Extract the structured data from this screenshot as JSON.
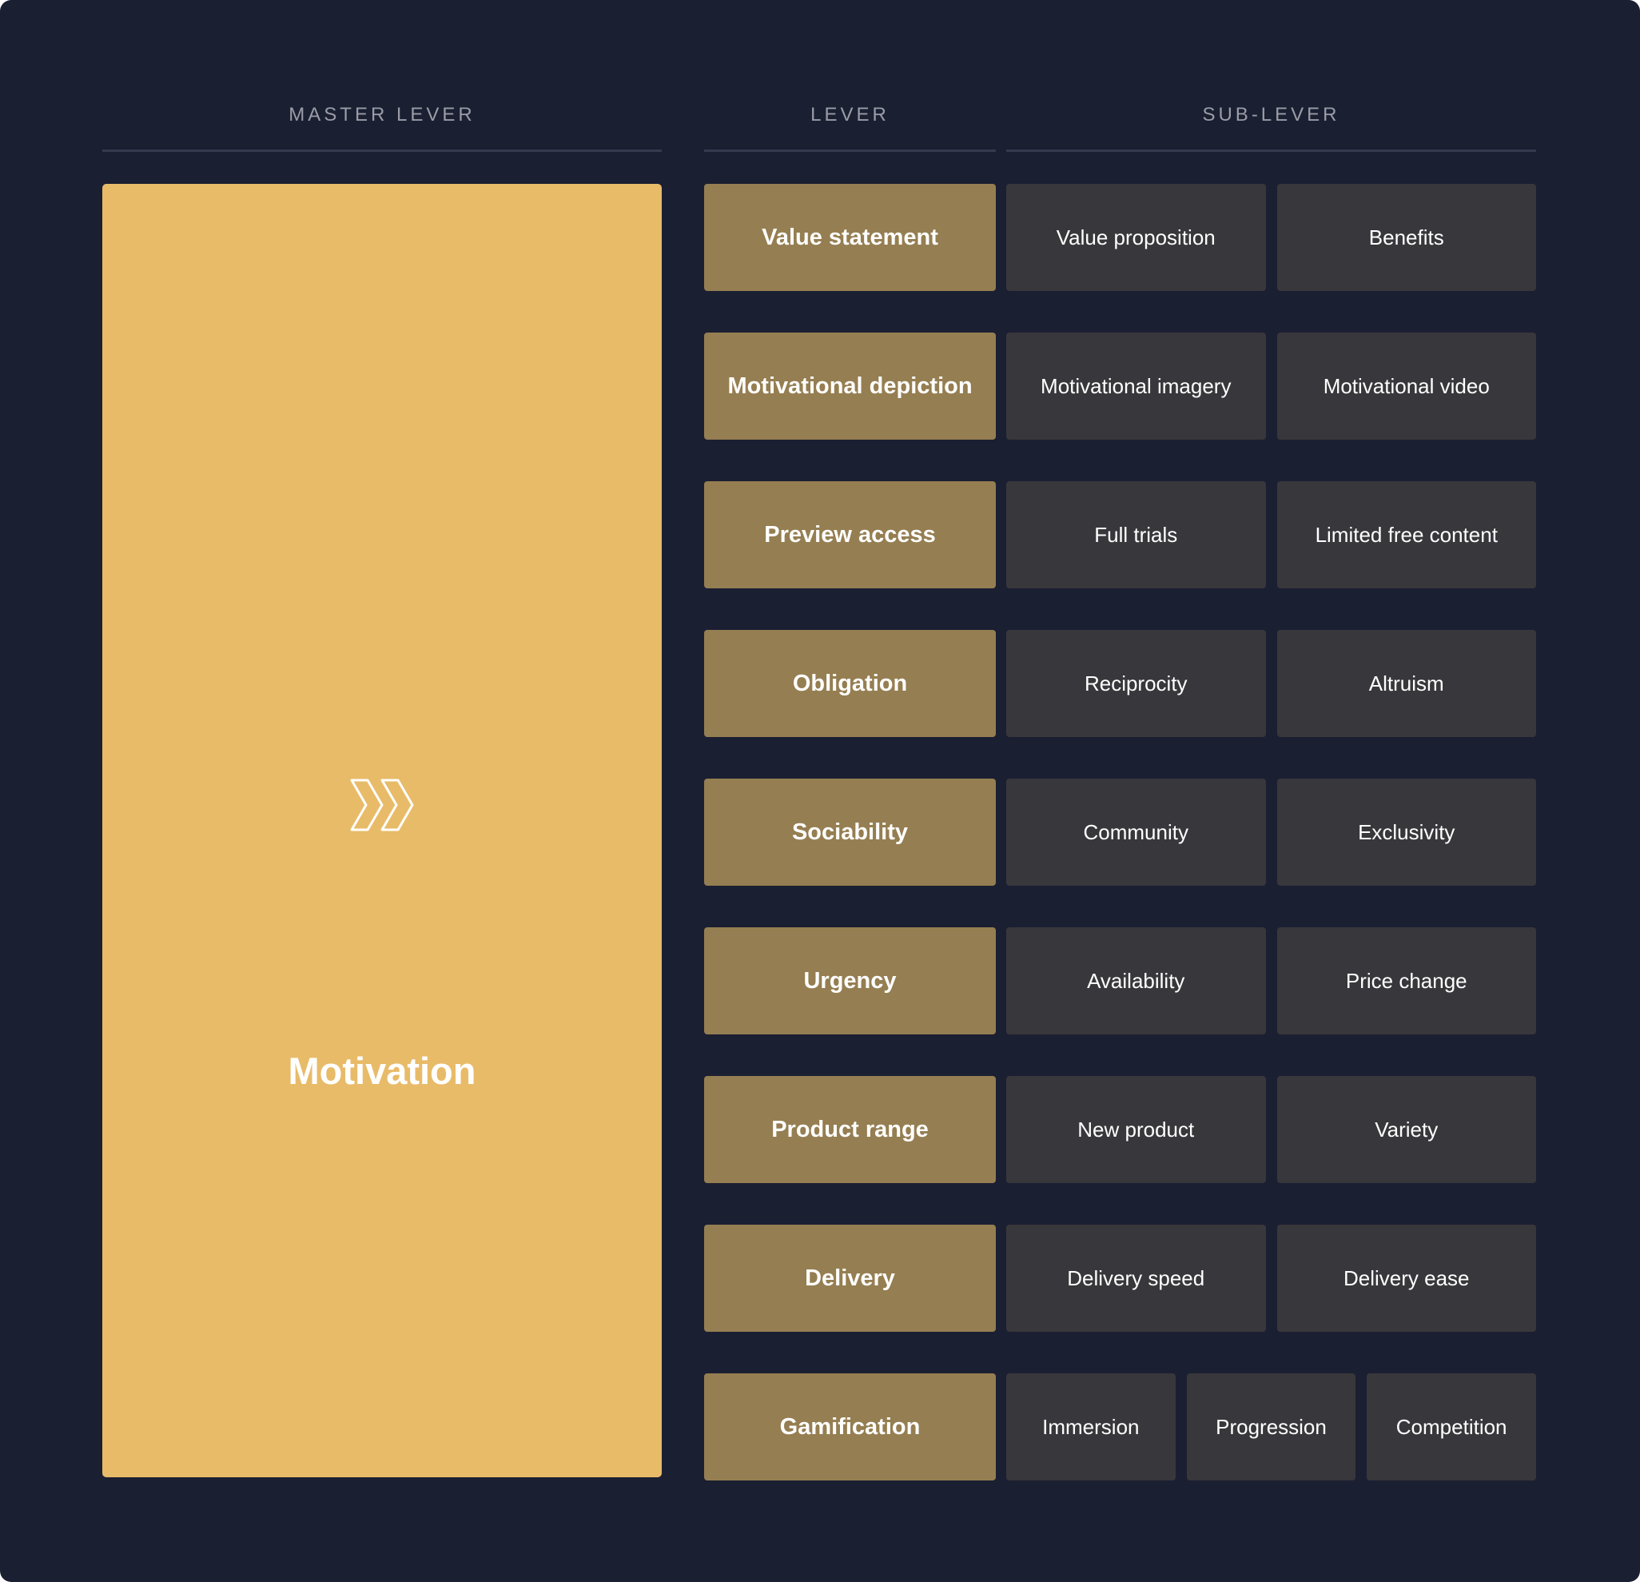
{
  "headers": {
    "master": "MASTER LEVER",
    "lever": "LEVER",
    "sub": "SUB-LEVER"
  },
  "master": {
    "title": "Motivation",
    "icon": "double-chevron-right-icon"
  },
  "colors": {
    "background": "#1b1f32",
    "master": "#e8bb69",
    "lever": "#957e51",
    "sub_lever": "#38373b"
  },
  "rows": [
    {
      "lever": "Value statement",
      "subs": [
        "Value proposition",
        "Benefits"
      ]
    },
    {
      "lever": "Motivational depiction",
      "subs": [
        "Motivational imagery",
        "Motivational video"
      ]
    },
    {
      "lever": "Preview access",
      "subs": [
        "Full trials",
        "Limited free content"
      ]
    },
    {
      "lever": "Obligation",
      "subs": [
        "Reciprocity",
        "Altruism"
      ]
    },
    {
      "lever": "Sociability",
      "subs": [
        "Community",
        "Exclusivity"
      ]
    },
    {
      "lever": "Urgency",
      "subs": [
        "Availability",
        "Price change"
      ]
    },
    {
      "lever": "Product range",
      "subs": [
        "New product",
        "Variety"
      ]
    },
    {
      "lever": "Delivery",
      "subs": [
        "Delivery speed",
        "Delivery ease"
      ]
    },
    {
      "lever": "Gamification",
      "subs": [
        "Immersion",
        "Progression",
        "Competition"
      ]
    }
  ]
}
